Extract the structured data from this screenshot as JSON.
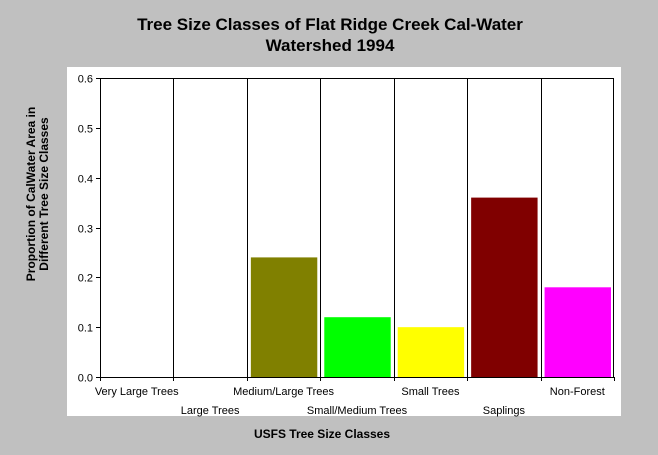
{
  "chart_data": {
    "type": "bar",
    "title_lines": [
      "Tree Size Classes of Flat Ridge Creek Cal-Water",
      "Watershed 1994"
    ],
    "xlabel": "USFS Tree Size Classes",
    "ylabel_lines": [
      "Proportion of CalWater Area in",
      "Different Tree Size Classes"
    ],
    "categories": [
      "Very Large Trees",
      "Large Trees",
      "Medium/Large Trees",
      "Small/Medium Trees",
      "Small Trees",
      "Saplings",
      "Non-Forest"
    ],
    "values": [
      0,
      0,
      0.24,
      0.12,
      0.1,
      0.36,
      0.18
    ],
    "bar_colors": [
      "#808080",
      "#808080",
      "#808000",
      "#00ff00",
      "#ffff00",
      "#800000",
      "#ff00ff"
    ],
    "yticks": [
      "0.0",
      "0.1",
      "0.2",
      "0.3",
      "0.4",
      "0.5",
      "0.6"
    ],
    "ylim": [
      0,
      0.6
    ],
    "grid": "vertical"
  }
}
